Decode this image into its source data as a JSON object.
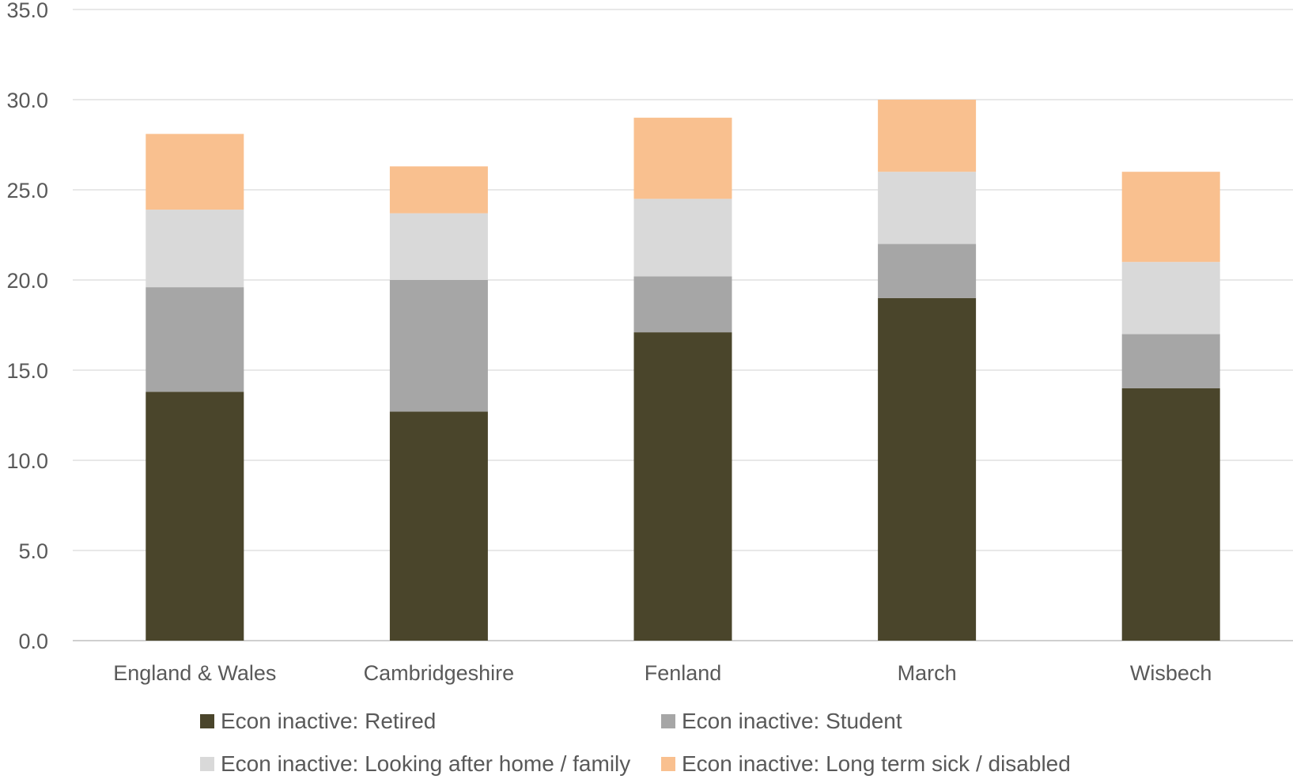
{
  "chart_data": {
    "type": "bar",
    "stacked": true,
    "categories": [
      "England & Wales",
      "Cambridgeshire",
      "Fenland",
      "March",
      "Wisbech"
    ],
    "series": [
      {
        "name": "Econ inactive: Retired",
        "color": "#4a452b",
        "values": [
          13.8,
          12.7,
          17.1,
          19.0,
          14.0
        ]
      },
      {
        "name": "Econ inactive: Student",
        "color": "#a6a6a6",
        "values": [
          5.8,
          7.3,
          3.1,
          3.0,
          3.0
        ]
      },
      {
        "name": "Econ inactive: Looking after home / family",
        "color": "#d9d9d9",
        "values": [
          4.3,
          3.7,
          4.3,
          4.0,
          4.0
        ]
      },
      {
        "name": "Econ inactive: Long term sick / disabled",
        "color": "#f9c08f",
        "values": [
          4.2,
          2.6,
          4.5,
          4.0,
          5.0
        ]
      }
    ],
    "ylim": [
      0,
      35
    ],
    "yticks": [
      "0.0",
      "5.0",
      "10.0",
      "15.0",
      "20.0",
      "25.0",
      "30.0",
      "35.0"
    ],
    "ytick_values": [
      0,
      5,
      10,
      15,
      20,
      25,
      30,
      35
    ],
    "grid": true,
    "legend_position": "bottom",
    "title": "",
    "xlabel": "",
    "ylabel": ""
  }
}
